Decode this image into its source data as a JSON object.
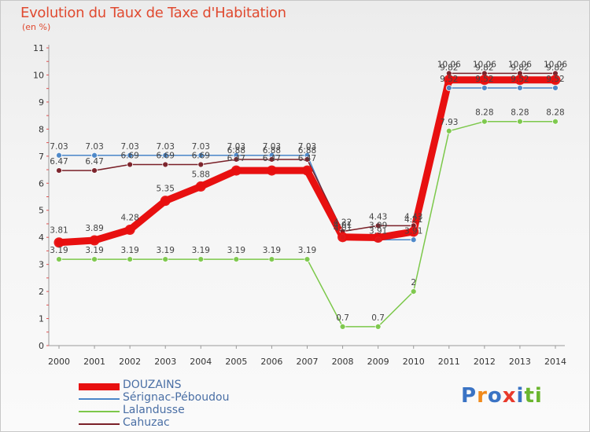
{
  "header": {
    "title": "Evolution du Taux de Taxe d'Habitation",
    "unit": "(en %)"
  },
  "brand": {
    "logo_letters": [
      "P",
      "r",
      "o",
      "x",
      "i",
      "t",
      "i"
    ],
    "logo_colors": [
      "#3a73c4",
      "#f08a1c",
      "#3a73c4",
      "#e83a2c",
      "#3a73c4",
      "#6ab52e",
      "#6ab52e"
    ]
  },
  "chart_data": {
    "type": "line",
    "title": "Evolution du Taux de Taxe d'Habitation",
    "subtitle": "(en %)",
    "xlabel": "",
    "ylabel": "(en %)",
    "ylim": [
      0,
      11
    ],
    "yticks": [
      "0",
      "1",
      "2",
      "3",
      "4",
      "5",
      "6",
      "7",
      "8",
      "9",
      "10",
      "11"
    ],
    "grid": false,
    "legend_position": "bottom-left",
    "categories": [
      "2000",
      "2001",
      "2002",
      "2003",
      "2004",
      "2005",
      "2006",
      "2007",
      "2008",
      "2009",
      "2010",
      "2011",
      "2012",
      "2013",
      "2014"
    ],
    "series": [
      {
        "name": "DOUZAINS",
        "color": "#e81010",
        "values": [
          3.81,
          3.89,
          4.28,
          5.35,
          5.88,
          6.47,
          6.47,
          6.47,
          4.01,
          3.99,
          4.21,
          9.82,
          9.82,
          9.82,
          9.82
        ],
        "labels": [
          "3.81",
          "3.89",
          "4.28",
          "5.35",
          "5.88",
          "6.47",
          "6.47",
          "6.47",
          "4.01",
          "3.99",
          "4.21",
          "9.82",
          "9.82",
          "9.82",
          "9.82"
        ]
      },
      {
        "name": "Sérignac-Péboudou",
        "color": "#4a86c8",
        "values": [
          7.03,
          7.03,
          7.03,
          7.03,
          7.03,
          7.03,
          7.03,
          7.03,
          4.01,
          3.91,
          3.91,
          9.52,
          9.52,
          9.52,
          9.52
        ],
        "labels": [
          "7.03",
          "7.03",
          "7.03",
          "7.03",
          "7.03",
          "7.03",
          "7.03",
          "7.03",
          "4.01",
          "3.91",
          "3.91",
          "9.52",
          "9.52",
          "9.52",
          "9.52"
        ]
      },
      {
        "name": "Lalandusse",
        "color": "#7cc84a",
        "values": [
          3.19,
          3.19,
          3.19,
          3.19,
          3.19,
          3.19,
          3.19,
          3.19,
          0.7,
          0.7,
          2,
          7.93,
          8.28,
          8.28,
          8.28
        ],
        "labels": [
          "3.19",
          "3.19",
          "3.19",
          "3.19",
          "3.19",
          "3.19",
          "3.19",
          "3.19",
          "0.7",
          "0.7",
          "2",
          "7.93",
          "8.28",
          "8.28",
          "8.28"
        ]
      },
      {
        "name": "Cahuzac",
        "color": "#7a2028",
        "values": [
          6.47,
          6.47,
          6.69,
          6.69,
          6.69,
          6.88,
          6.88,
          6.88,
          4.22,
          4.43,
          4.43,
          10.06,
          10.06,
          10.06,
          10.06
        ],
        "labels": [
          "6.47",
          "6.47",
          "6.69",
          "6.69",
          "6.69",
          "6.88",
          "6.88",
          "6.88",
          "4.22",
          "4.43",
          "4.43",
          "10.06",
          "10.06",
          "10.06",
          "10.06"
        ]
      }
    ]
  }
}
